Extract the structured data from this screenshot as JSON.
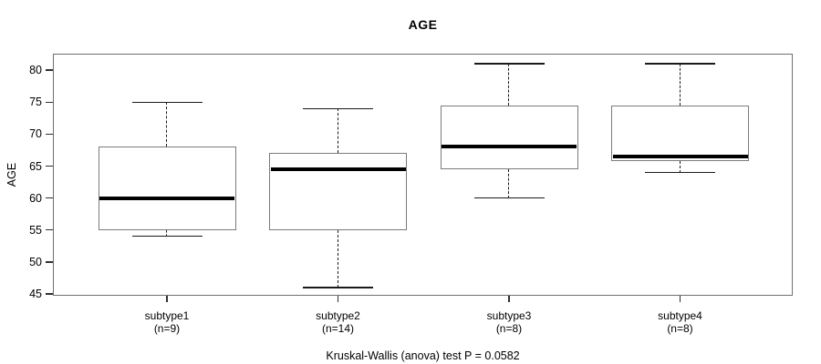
{
  "chart_data": {
    "type": "boxplot",
    "title": "AGE",
    "ylabel": "AGE",
    "xlabel": "",
    "caption": "Kruskal-Wallis (anova) test P = 0.0582",
    "p_value": "0.0582",
    "test_name": "Kruskal-Wallis (anova)",
    "y_ticks": [
      45,
      50,
      55,
      60,
      65,
      70,
      75,
      80
    ],
    "ylim": [
      44.7,
      82.6
    ],
    "grid": false,
    "legend": "none",
    "categories": [
      "subtype1",
      "subtype2",
      "subtype3",
      "subtype4"
    ],
    "count_labels": [
      "(n=9)",
      "(n=14)",
      "(n=8)",
      "(n=8)"
    ],
    "series": [
      {
        "name": "subtype1",
        "n": 9,
        "whisker_low": 54,
        "q1": 55,
        "median": 60,
        "q3": 68,
        "whisker_high": 75
      },
      {
        "name": "subtype2",
        "n": 14,
        "whisker_low": 46,
        "q1": 55,
        "median": 64.5,
        "q3": 67,
        "whisker_high": 74
      },
      {
        "name": "subtype3",
        "n": 8,
        "whisker_low": 60,
        "q1": 64.5,
        "median": 68,
        "q3": 74.5,
        "whisker_high": 81
      },
      {
        "name": "subtype4",
        "n": 8,
        "whisker_low": 64,
        "q1": 65.75,
        "median": 66.5,
        "q3": 74.5,
        "whisker_high": 81
      }
    ],
    "colors": {
      "background": "#ffffff",
      "box_border": "#7b7b7b",
      "box_fill": "#ffffff",
      "median": "#000000",
      "whisker": "#1a1a1a",
      "frame": "#6f6f6f",
      "tick": "#303030",
      "text": "#000000"
    }
  }
}
